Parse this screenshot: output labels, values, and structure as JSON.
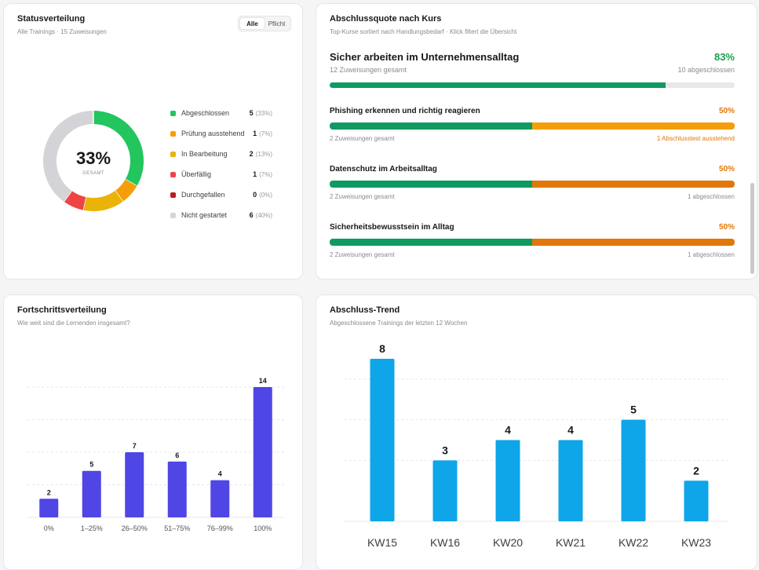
{
  "status": {
    "title": "Statusverteilung",
    "subtitle": "Alle Trainings · 15 Zuweisungen",
    "toggle": {
      "all": "Alle",
      "mandatory": "Pflicht"
    },
    "center_value": "33%",
    "center_label": "GESAMT",
    "colors": {
      "Abgeschlossen": "#22c55e",
      "Prüfung ausstehend": "#f59e0b",
      "In Bearbeitung": "#eab308",
      "Überfällig": "#ef4444",
      "Durchgefallen": "#b91c1c",
      "Nicht gestartet": "#d4d4d8"
    },
    "legend": [
      {
        "name": "Abgeschlossen",
        "value": "5",
        "pct": "(33%)"
      },
      {
        "name": "Prüfung ausstehend",
        "value": "1",
        "pct": "(7%)"
      },
      {
        "name": "In Bearbeitung",
        "value": "2",
        "pct": "(13%)"
      },
      {
        "name": "Überfällig",
        "value": "1",
        "pct": "(7%)"
      },
      {
        "name": "Durchgefallen",
        "value": "0",
        "pct": "(0%)"
      },
      {
        "name": "Nicht gestartet",
        "value": "6",
        "pct": "(40%)"
      }
    ]
  },
  "quote": {
    "title": "Abschlussquote nach Kurs",
    "subtitle": "Top-Kurse sortiert nach Handlungsbedarf · Klick filtert die Übersicht",
    "courses": [
      {
        "name": "Sicher arbeiten im Unternehmensalltag",
        "pct": "83%",
        "done_fraction": 0.83,
        "total": "12 Zuweisungen gesamt",
        "right": "10 abgeschlossen",
        "rest_color": "#e8e8eb",
        "pct_color": "#16a34a",
        "right_color": "#8a8a93"
      },
      {
        "name": "Phishing erkennen und richtig reagieren",
        "pct": "50%",
        "done_fraction": 0.5,
        "total": "2 Zuweisungen gesamt",
        "right": "1 Abschlusstest ausstehend",
        "rest_color": "#f59e0b",
        "pct_color": "#e0780b",
        "right_color": "#e0780b"
      },
      {
        "name": "Datenschutz im Arbeitsalltag",
        "pct": "50%",
        "done_fraction": 0.5,
        "total": "2 Zuweisungen gesamt",
        "right": "1 abgeschlossen",
        "rest_color": "#e0780b",
        "pct_color": "#e0780b",
        "right_color": "#8a8a93"
      },
      {
        "name": "Sicherheitsbewusstsein im Alltag",
        "pct": "50%",
        "done_fraction": 0.5,
        "total": "2 Zuweisungen gesamt",
        "right": "1 abgeschlossen",
        "rest_color": "#e0780b",
        "pct_color": "#e0780b",
        "right_color": "#8a8a93"
      }
    ]
  },
  "progress": {
    "title": "Fortschrittsverteilung",
    "subtitle": "Wie weit sind die Lernenden insgesamt?",
    "bar_color": "#4f46e5"
  },
  "trend": {
    "title": "Abschluss-Trend",
    "subtitle": "Abgeschlossene Trainings der letzten 12 Wochen",
    "bar_color": "#0ea5e9"
  },
  "chart_data": [
    {
      "type": "pie",
      "categories": [
        "Abgeschlossen",
        "Prüfung ausstehend",
        "In Bearbeitung",
        "Überfällig",
        "Durchgefallen",
        "Nicht gestartet"
      ],
      "values": [
        5,
        1,
        2,
        1,
        0,
        6
      ],
      "title": "Statusverteilung"
    },
    {
      "type": "bar",
      "categories": [
        "0%",
        "1–25%",
        "26–50%",
        "51–75%",
        "76–99%",
        "100%"
      ],
      "values": [
        2,
        5,
        7,
        6,
        4,
        14
      ],
      "title": "Fortschrittsverteilung",
      "ylim": [
        0,
        14
      ],
      "grid": true
    },
    {
      "type": "bar",
      "categories": [
        "KW15",
        "KW16",
        "KW20",
        "KW21",
        "KW22",
        "KW23"
      ],
      "values": [
        8,
        3,
        4,
        4,
        5,
        2
      ],
      "title": "Abschluss-Trend",
      "ylim": [
        0,
        8
      ],
      "grid": true
    }
  ]
}
